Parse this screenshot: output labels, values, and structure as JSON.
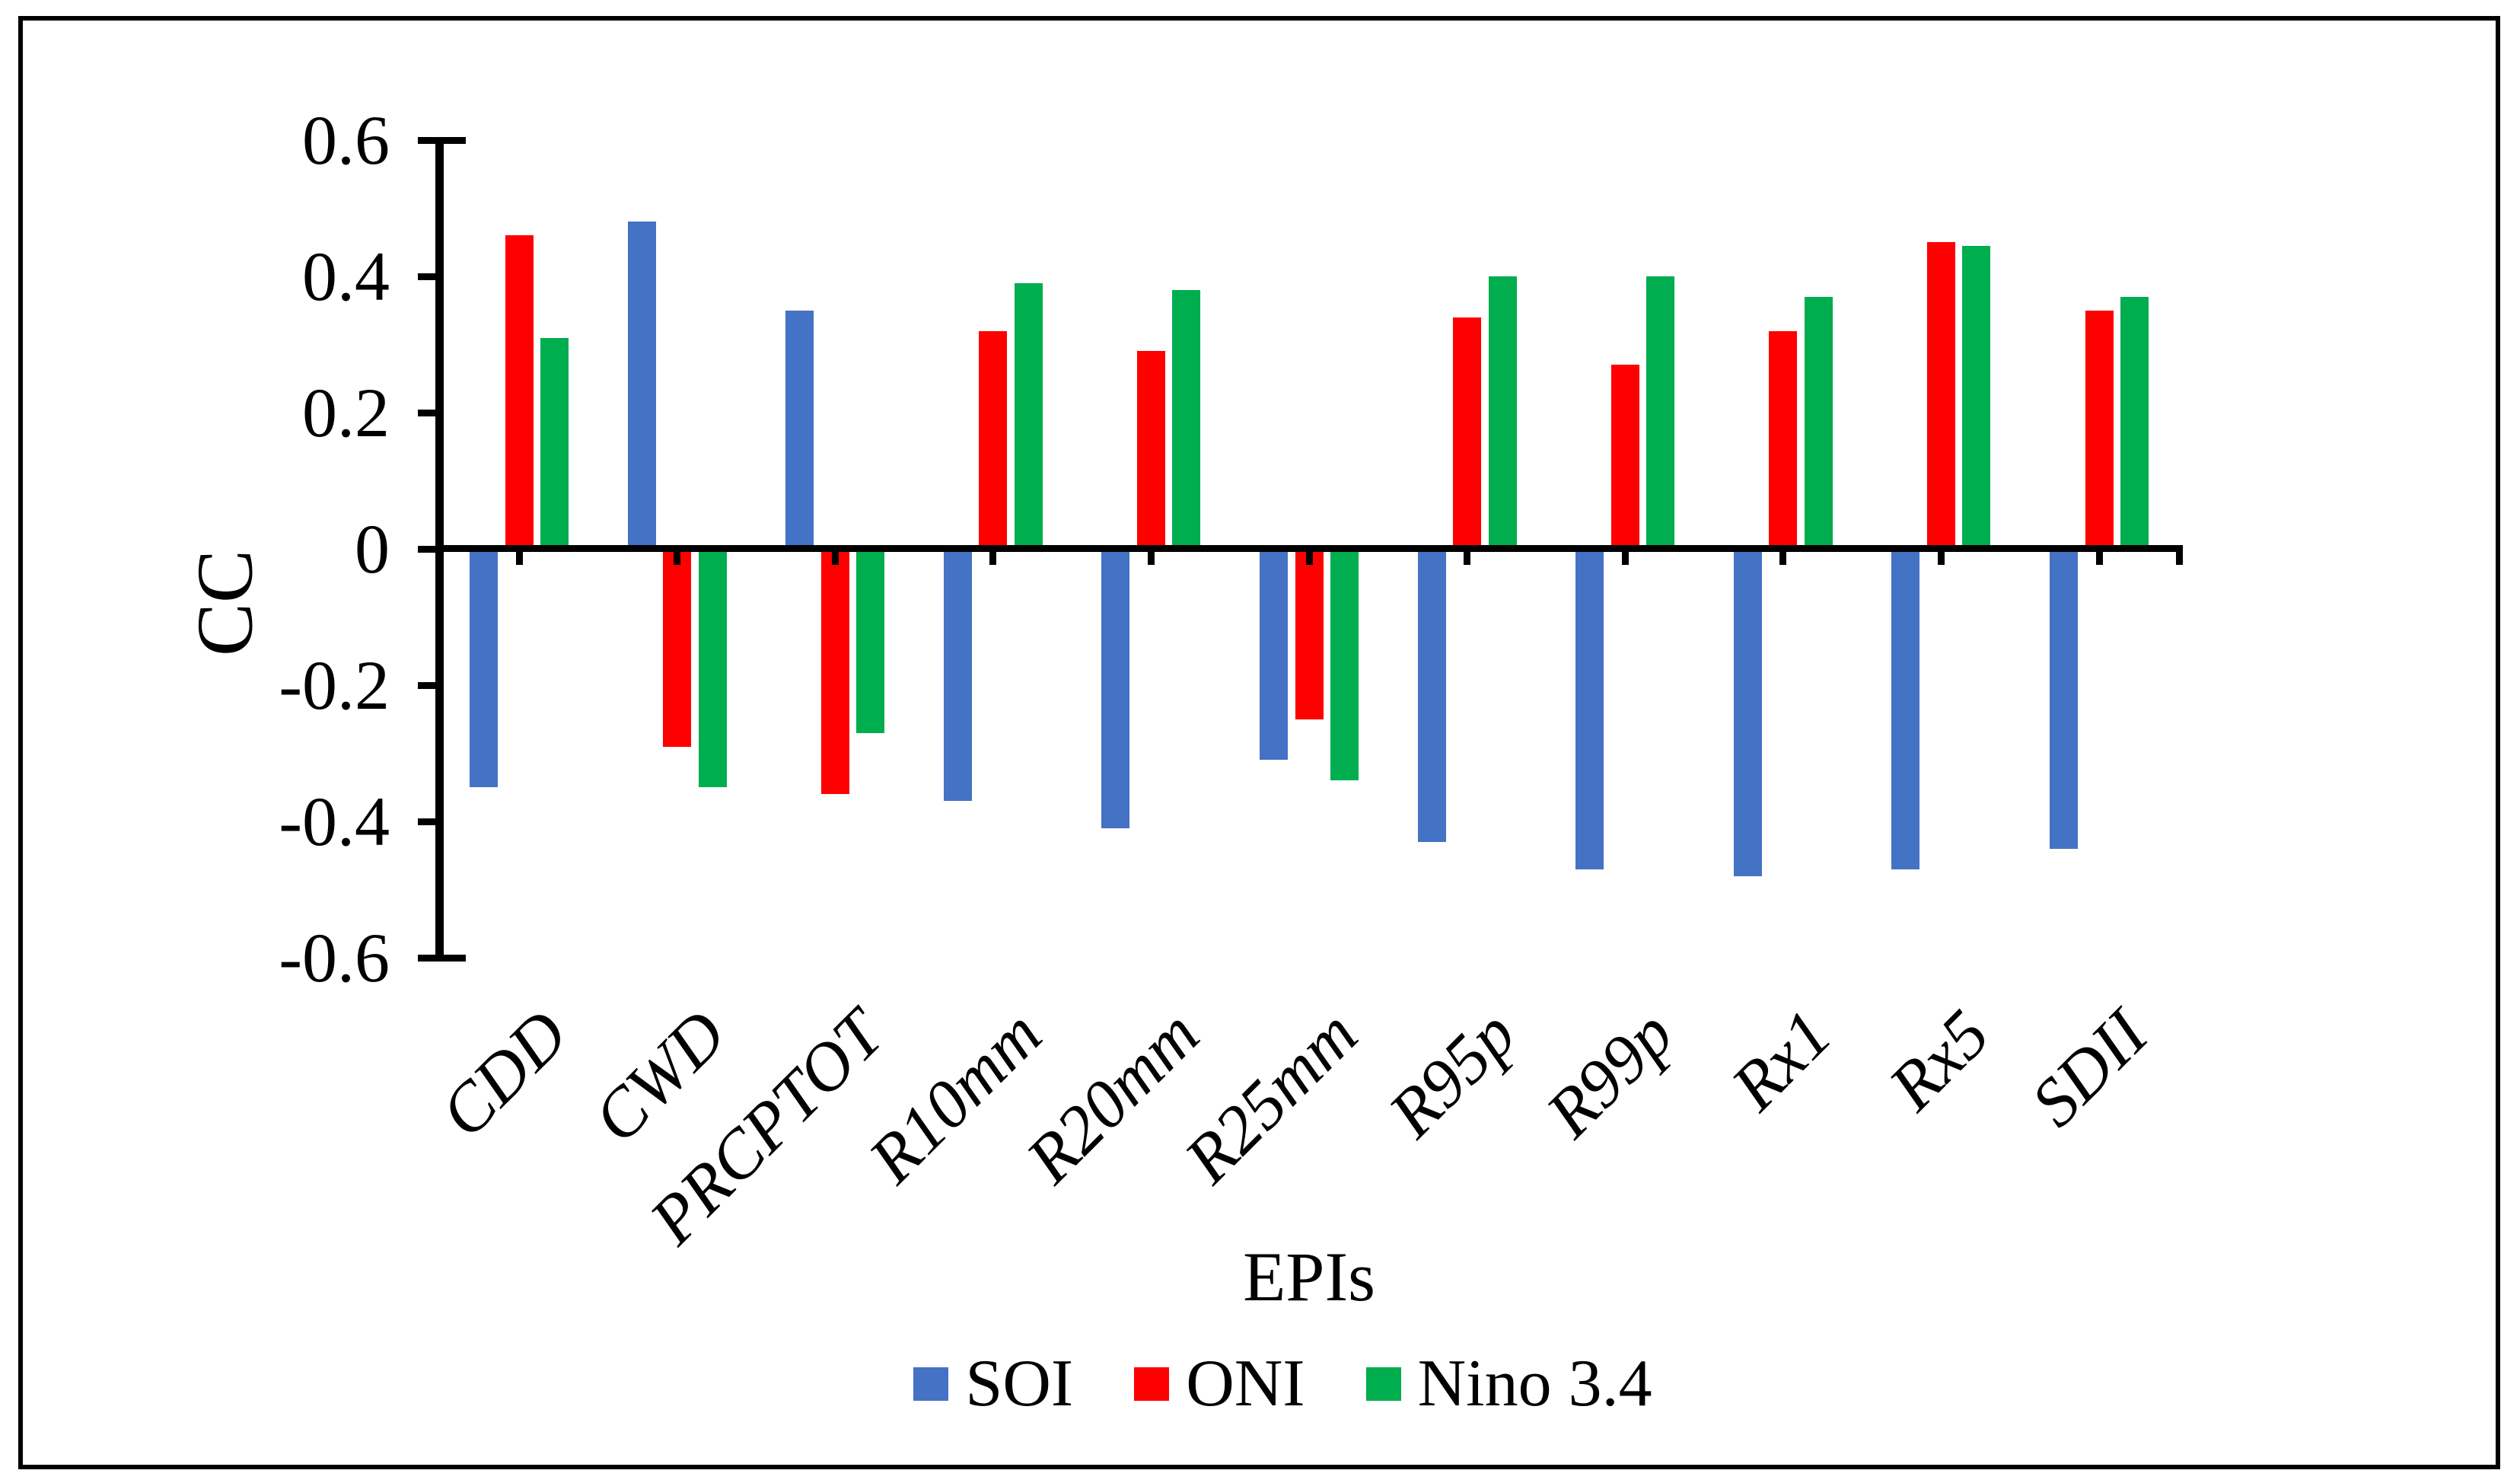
{
  "chart_data": {
    "type": "bar",
    "title": "",
    "xlabel": "EPIs",
    "ylabel": "CC",
    "categories": [
      "CDD",
      "CWD",
      "PRCPTOT",
      "R10mm",
      "R20mm",
      "R25mm",
      "R95p",
      "R99p",
      "Rx1",
      "Rx5",
      "SDII"
    ],
    "series": [
      {
        "name": "SOI",
        "color": "#4472C4",
        "values": [
          -0.35,
          0.48,
          0.35,
          -0.37,
          -0.41,
          -0.31,
          -0.43,
          -0.47,
          -0.48,
          -0.47,
          -0.44
        ]
      },
      {
        "name": "ONI",
        "color": "#FF0000",
        "values": [
          0.46,
          -0.29,
          -0.36,
          0.32,
          0.29,
          -0.25,
          0.34,
          0.27,
          0.32,
          0.45,
          0.35
        ]
      },
      {
        "name": "Nino 3.4",
        "color": "#00AD4F",
        "values": [
          0.31,
          -0.35,
          -0.27,
          0.39,
          0.38,
          -0.34,
          0.4,
          0.4,
          0.37,
          0.445,
          0.37
        ]
      }
    ],
    "ylim": [
      -0.6,
      0.6
    ],
    "ytick_step": 0.2,
    "ytick_values": [
      0.6,
      0.4,
      0.2,
      0,
      -0.2,
      -0.4,
      -0.6
    ],
    "ytick_labels": [
      "0.6",
      "0.4",
      "0.2",
      "0",
      "-0.2",
      "-0.4",
      "-0.6"
    ],
    "legend_position": "bottom",
    "grid": false,
    "axis_color": "#000000",
    "frame_border_color": "#000000"
  }
}
